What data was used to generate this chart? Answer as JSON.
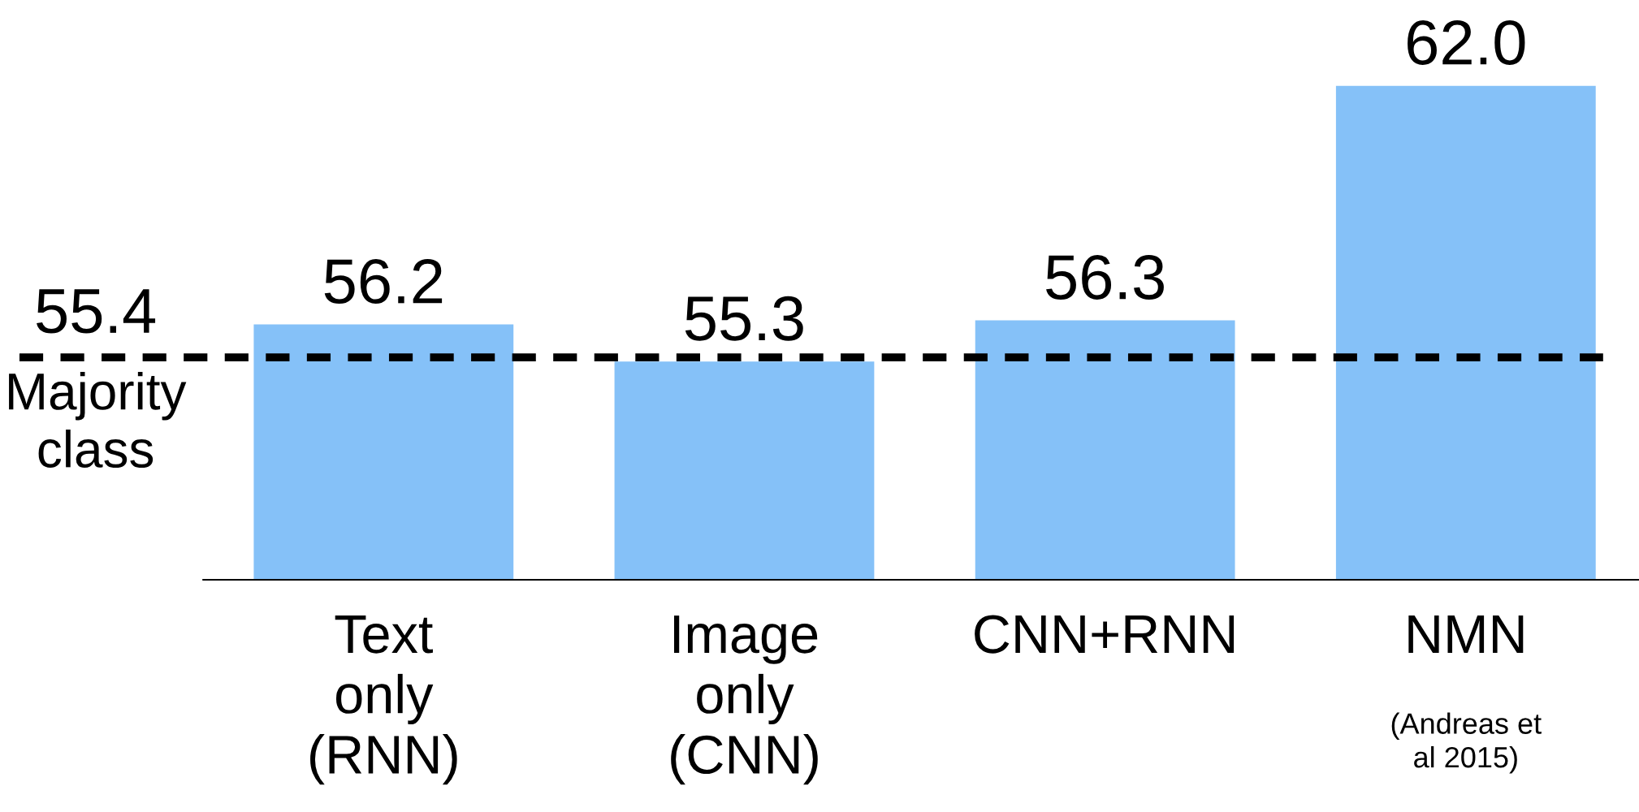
{
  "chart_data": {
    "type": "bar",
    "categories": [
      "Text\nonly\n(RNN)",
      "Image\nonly\n(CNN)",
      "CNN+RNN",
      "NMN"
    ],
    "values": [
      56.2,
      55.3,
      56.3,
      62.0
    ],
    "value_labels": [
      "56.2",
      "55.3",
      "56.3",
      "62.0"
    ],
    "color": "#85c1f8",
    "ylim": [
      50,
      62.0
    ],
    "tick_labels": "x",
    "ref_lines": [
      {
        "axis": "y",
        "value": 55.4,
        "label": "Majority\nclass",
        "color": "#000000",
        "line_style": "dashed"
      }
    ],
    "annotations": [
      {
        "text": "55.4",
        "y": 55.4
      },
      "(Andreas et\nal 2015)"
    ]
  }
}
